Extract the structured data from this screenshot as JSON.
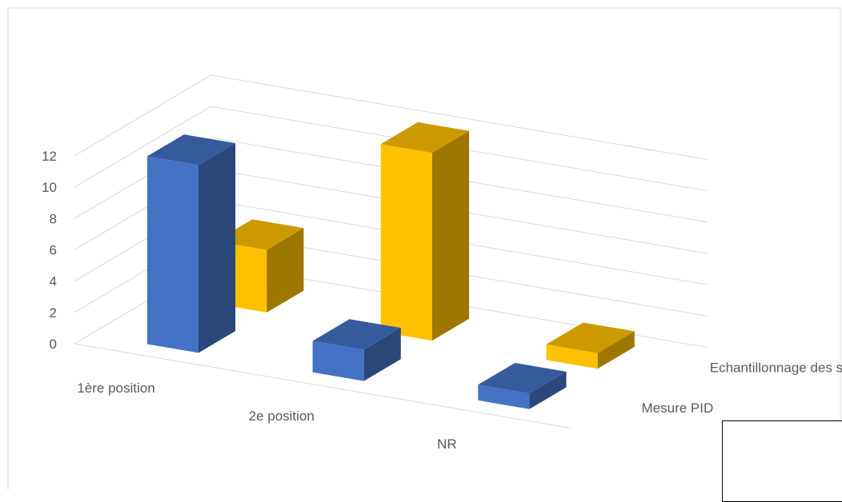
{
  "chart_data": {
    "type": "bar",
    "subtype": "3d-column",
    "categories": [
      "1ère position",
      "2e position",
      "NR"
    ],
    "series": [
      {
        "name": "Mesure PID",
        "values": [
          12,
          2,
          1
        ],
        "color": "#4472C4"
      },
      {
        "name": "Echantillonnage des sols",
        "values": [
          4,
          12,
          1
        ],
        "color": "#FFC000"
      }
    ],
    "ylim": [
      0,
      12
    ],
    "yticks": [
      0,
      2,
      4,
      6,
      8,
      10,
      12
    ],
    "grid": true,
    "legend": "none"
  }
}
